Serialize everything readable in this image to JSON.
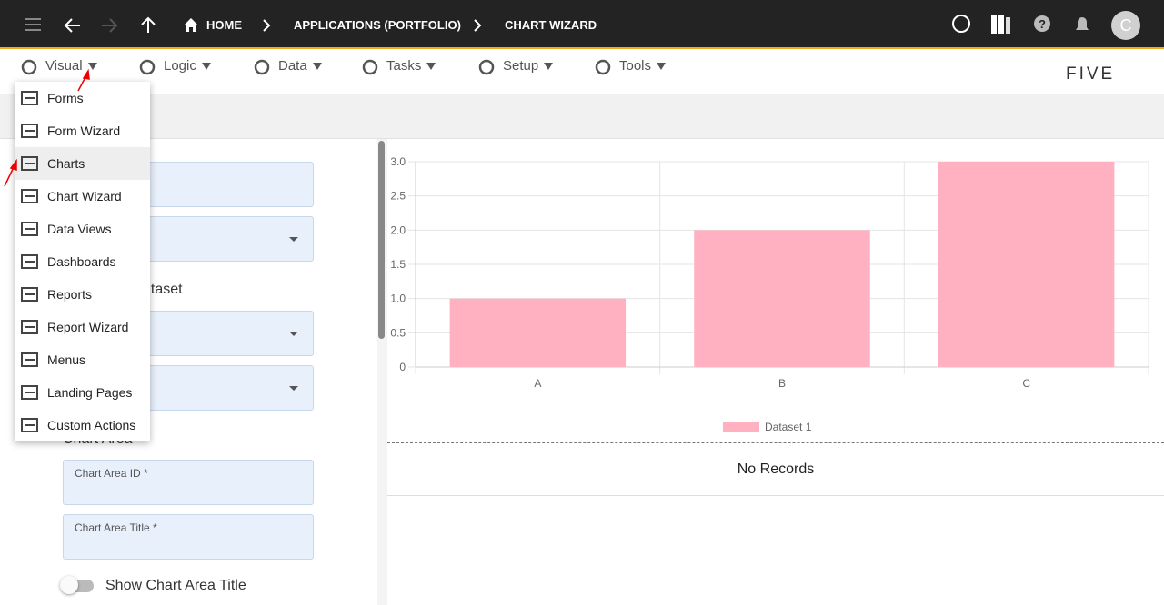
{
  "topbar": {
    "breadcrumbs": [
      "HOME",
      "APPLICATIONS (PORTFOLIO)",
      "CHART WIZARD"
    ],
    "avatar": "C"
  },
  "menubar": {
    "items": [
      "Visual",
      "Logic",
      "Data",
      "Tasks",
      "Setup",
      "Tools"
    ],
    "logo": "FIVE"
  },
  "dropdown": {
    "items": [
      "Forms",
      "Form Wizard",
      "Charts",
      "Chart Wizard",
      "Data Views",
      "Dashboards",
      "Reports",
      "Report Wizard",
      "Menus",
      "Landing Pages",
      "Custom Actions"
    ]
  },
  "form": {
    "dataset_heading": "ataset",
    "area_heading": "Chart Area",
    "fields": [
      "Chart Area ID *",
      "Chart Area Title *"
    ],
    "toggle": "Show Chart Area Title"
  },
  "chart_data": {
    "type": "bar",
    "categories": [
      "A",
      "B",
      "C"
    ],
    "series": [
      {
        "name": "Dataset 1",
        "color": "#ffb1c1",
        "values": [
          1,
          2,
          3
        ]
      }
    ],
    "ylim": [
      0,
      3
    ],
    "yticks": [
      0,
      0.5,
      {
        "value": 1,
        "label": "1.0"
      },
      1.5,
      {
        "value": 2,
        "label": "2.0"
      },
      2.5,
      {
        "value": 3,
        "label": "3.0"
      }
    ],
    "grid": true
  },
  "records": {
    "empty_text": "No Records"
  }
}
